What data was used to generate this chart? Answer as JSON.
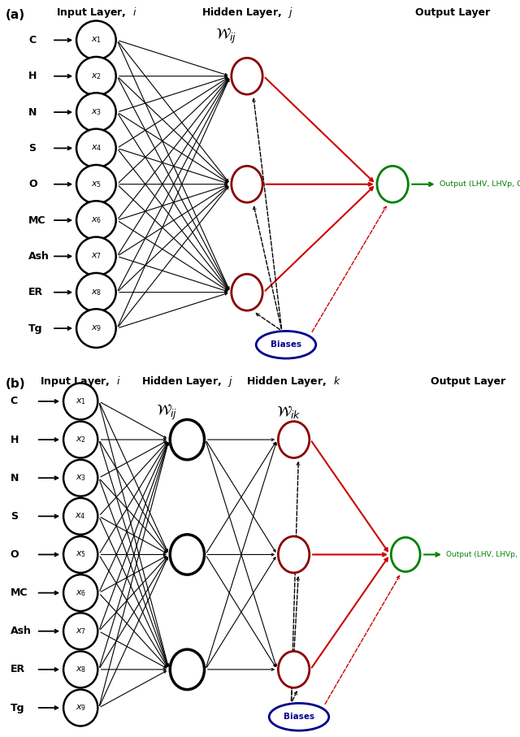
{
  "input_labels": [
    "C",
    "H",
    "N",
    "S",
    "O",
    "MC",
    "Ash",
    "ER",
    "Tg"
  ],
  "input_subscripts": [
    "1",
    "2",
    "3",
    "4",
    "5",
    "6",
    "7",
    "8",
    "9"
  ],
  "output_label": "Output (LHV, LHVp, Gas yield)",
  "hidden_a_color": "#8B0000",
  "output_color": "#008000",
  "bias_color": "#00008B",
  "arrow_color_red": "#CC0000",
  "fig_width": 6.4,
  "fig_height": 9.07,
  "panel_a_label": "(a)",
  "panel_b_label": "(b)"
}
